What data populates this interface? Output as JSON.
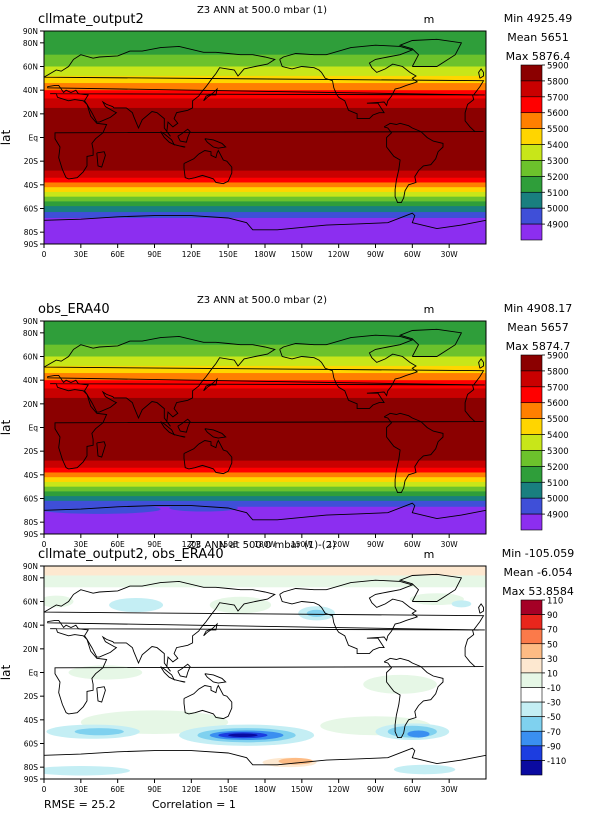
{
  "panel_ids": [
    "1",
    "2",
    "3"
  ],
  "chart_data": [
    {
      "type": "heatmap",
      "name": "cllmate_output2",
      "title": "Z3 ANN at 500.0 mbar (1)",
      "units": "m",
      "ylabel": "lat",
      "stats": {
        "min": "Min 4925.49",
        "mean": "Mean 5651",
        "max": "Max 5876.4"
      },
      "x_ticks": [
        "0",
        "30E",
        "60E",
        "90E",
        "120E",
        "150E",
        "180W",
        "150W",
        "120W",
        "90W",
        "60W",
        "30W"
      ],
      "y_ticks": [
        "90N",
        "80N",
        "60N",
        "40N",
        "20N",
        "Eq",
        "20S",
        "40S",
        "60S",
        "80S",
        "90S"
      ],
      "legend_levels": [
        "5900",
        "5800",
        "5700",
        "5600",
        "5500",
        "5400",
        "5300",
        "5200",
        "5100",
        "5000",
        "4900"
      ],
      "legend_colors": [
        "#8b0000",
        "#c90000",
        "#ff0000",
        "#ff7f00",
        "#ffd500",
        "#c8e619",
        "#6cc22c",
        "#2f9e3a",
        "#197f7f",
        "#3f4fd8",
        "#8c2ef0"
      ],
      "bands": [
        {
          "lat_top": 90,
          "lat_bottom": 70,
          "color": "#2f9e3a"
        },
        {
          "lat_top": 70,
          "lat_bottom": 60,
          "color": "#6cc22c"
        },
        {
          "lat_top": 60,
          "lat_bottom": 52,
          "color": "#c8e619"
        },
        {
          "lat_top": 52,
          "lat_bottom": 46,
          "color": "#ffd500"
        },
        {
          "lat_top": 46,
          "lat_bottom": 40,
          "color": "#ff7f00"
        },
        {
          "lat_top": 40,
          "lat_bottom": 33,
          "color": "#ff0000"
        },
        {
          "lat_top": 33,
          "lat_bottom": 25,
          "color": "#c90000"
        },
        {
          "lat_top": 25,
          "lat_bottom": -28,
          "color": "#8b0000"
        },
        {
          "lat_top": -28,
          "lat_bottom": -34,
          "color": "#c90000"
        },
        {
          "lat_top": -34,
          "lat_bottom": -38,
          "color": "#ff0000"
        },
        {
          "lat_top": -38,
          "lat_bottom": -42,
          "color": "#ff7f00"
        },
        {
          "lat_top": -42,
          "lat_bottom": -46,
          "color": "#ffd500"
        },
        {
          "lat_top": -46,
          "lat_bottom": -50,
          "color": "#c8e619"
        },
        {
          "lat_top": -50,
          "lat_bottom": -54,
          "color": "#6cc22c"
        },
        {
          "lat_top": -54,
          "lat_bottom": -58,
          "color": "#2f9e3a"
        },
        {
          "lat_top": -58,
          "lat_bottom": -63,
          "color": "#197f7f"
        },
        {
          "lat_top": -63,
          "lat_bottom": -68,
          "color": "#3f4fd8"
        },
        {
          "lat_top": -68,
          "lat_bottom": -90,
          "color": "#8c2ef0"
        }
      ],
      "blobs": []
    },
    {
      "type": "heatmap",
      "name": "obs_ERA40",
      "title": "Z3 ANN at 500.0 mbar (2)",
      "units": "m",
      "ylabel": "lat",
      "stats": {
        "min": "Min 4908.17",
        "mean": "Mean 5657",
        "max": "Max 5874.7"
      },
      "x_ticks": [
        "0",
        "30E",
        "60E",
        "90E",
        "120E",
        "150E",
        "180W",
        "150W",
        "120W",
        "90W",
        "60W",
        "30W"
      ],
      "y_ticks": [
        "90N",
        "80N",
        "60N",
        "40N",
        "20N",
        "Eq",
        "20S",
        "40S",
        "60S",
        "80S",
        "90S"
      ],
      "legend_levels": [
        "5900",
        "5800",
        "5700",
        "5600",
        "5500",
        "5400",
        "5300",
        "5200",
        "5100",
        "5000",
        "4900"
      ],
      "legend_colors": [
        "#8b0000",
        "#c90000",
        "#ff0000",
        "#ff7f00",
        "#ffd500",
        "#c8e619",
        "#6cc22c",
        "#2f9e3a",
        "#197f7f",
        "#3f4fd8",
        "#8c2ef0"
      ],
      "bands": [
        {
          "lat_top": 90,
          "lat_bottom": 70,
          "color": "#2f9e3a"
        },
        {
          "lat_top": 70,
          "lat_bottom": 60,
          "color": "#6cc22c"
        },
        {
          "lat_top": 60,
          "lat_bottom": 52,
          "color": "#c8e619"
        },
        {
          "lat_top": 52,
          "lat_bottom": 46,
          "color": "#ffd500"
        },
        {
          "lat_top": 46,
          "lat_bottom": 40,
          "color": "#ff7f00"
        },
        {
          "lat_top": 40,
          "lat_bottom": 33,
          "color": "#ff0000"
        },
        {
          "lat_top": 33,
          "lat_bottom": 25,
          "color": "#c90000"
        },
        {
          "lat_top": 25,
          "lat_bottom": -28,
          "color": "#8b0000"
        },
        {
          "lat_top": -28,
          "lat_bottom": -34,
          "color": "#c90000"
        },
        {
          "lat_top": -34,
          "lat_bottom": -38,
          "color": "#ff0000"
        },
        {
          "lat_top": -38,
          "lat_bottom": -42,
          "color": "#ff7f00"
        },
        {
          "lat_top": -42,
          "lat_bottom": -46,
          "color": "#ffd500"
        },
        {
          "lat_top": -46,
          "lat_bottom": -50,
          "color": "#c8e619"
        },
        {
          "lat_top": -50,
          "lat_bottom": -54,
          "color": "#6cc22c"
        },
        {
          "lat_top": -54,
          "lat_bottom": -58,
          "color": "#2f9e3a"
        },
        {
          "lat_top": -58,
          "lat_bottom": -62,
          "color": "#197f7f"
        },
        {
          "lat_top": -62,
          "lat_bottom": -67,
          "color": "#3f4fd8"
        },
        {
          "lat_top": -67,
          "lat_bottom": -90,
          "color": "#8c2ef0"
        }
      ],
      "blobs": [
        {
          "lon": 45,
          "lat": -69,
          "dlon": 50,
          "dlat": 4,
          "color": "#3f4fd8"
        },
        {
          "lon": 130,
          "lat": -68,
          "dlon": 28,
          "dlat": 3,
          "color": "#3f4fd8"
        }
      ]
    },
    {
      "type": "heatmap",
      "name": "cllmate_output2, obs_ERA40",
      "title": "Z3 ANN at 500.0 mbar (1)-(2)",
      "units": "m",
      "ylabel": "lat",
      "stats": {
        "min": "Min -105.059",
        "mean": "Mean -6.054",
        "max": "Max 53.8584"
      },
      "x_ticks": [
        "0",
        "30E",
        "60E",
        "90E",
        "120E",
        "150E",
        "180W",
        "150W",
        "120W",
        "90W",
        "60W",
        "30W"
      ],
      "y_ticks": [
        "90N",
        "80N",
        "60N",
        "40N",
        "20N",
        "Eq",
        "20S",
        "40S",
        "60S",
        "80S",
        "90S"
      ],
      "legend_levels": [
        "110",
        "90",
        "70",
        "50",
        "30",
        "10",
        "-10",
        "-30",
        "-50",
        "-70",
        "-90",
        "-110"
      ],
      "legend_colors": [
        "#a50026",
        "#e8261c",
        "#fb7a4a",
        "#fdbb84",
        "#fde8d0",
        "#e6f7e6",
        "#ffffff",
        "#c4eef4",
        "#7fd1ef",
        "#3a8ff0",
        "#1c3de0",
        "#0a0aa0"
      ],
      "bands": [
        {
          "lat_top": 90,
          "lat_bottom": 82,
          "color": "#fde8d0"
        },
        {
          "lat_top": 82,
          "lat_bottom": 72,
          "color": "#e6f7e6"
        },
        {
          "lat_top": 72,
          "lat_bottom": -90,
          "color": "#ffffff"
        }
      ],
      "blobs": [
        {
          "lon": 10,
          "lat": 60,
          "dlon": 14,
          "dlat": 5,
          "color": "#e6f7e6"
        },
        {
          "lon": 75,
          "lat": 57,
          "dlon": 22,
          "dlat": 6,
          "color": "#c4eef4"
        },
        {
          "lon": 160,
          "lat": 57,
          "dlon": 25,
          "dlat": 7,
          "color": "#e6f7e6"
        },
        {
          "lon": 222,
          "lat": 50,
          "dlon": 15,
          "dlat": 6,
          "color": "#c4eef4"
        },
        {
          "lon": 222,
          "lat": 50,
          "dlon": 8,
          "dlat": 3,
          "color": "#7fd1ef"
        },
        {
          "lon": 320,
          "lat": 62,
          "dlon": 22,
          "dlat": 5,
          "color": "#e6f7e6"
        },
        {
          "lon": 340,
          "lat": 58,
          "dlon": 8,
          "dlat": 3,
          "color": "#c4eef4"
        },
        {
          "lon": 50,
          "lat": 0,
          "dlon": 30,
          "dlat": 6,
          "color": "#e6f7e6"
        },
        {
          "lon": 290,
          "lat": -10,
          "dlon": 30,
          "dlat": 8,
          "color": "#e6f7e6"
        },
        {
          "lon": 90,
          "lat": -42,
          "dlon": 60,
          "dlat": 10,
          "color": "#e6f7e6"
        },
        {
          "lon": 270,
          "lat": -45,
          "dlon": 45,
          "dlat": 8,
          "color": "#e6f7e6"
        },
        {
          "lon": 40,
          "lat": -50,
          "dlon": 38,
          "dlat": 6,
          "color": "#c4eef4"
        },
        {
          "lon": 45,
          "lat": -50,
          "dlon": 20,
          "dlat": 3,
          "color": "#7fd1ef"
        },
        {
          "lon": 165,
          "lat": -53,
          "dlon": 55,
          "dlat": 9,
          "color": "#c4eef4"
        },
        {
          "lon": 165,
          "lat": -53,
          "dlon": 40,
          "dlat": 6,
          "color": "#7fd1ef"
        },
        {
          "lon": 165,
          "lat": -53,
          "dlon": 30,
          "dlat": 4,
          "color": "#3a8ff0"
        },
        {
          "lon": 162,
          "lat": -53,
          "dlon": 20,
          "dlat": 2.6,
          "color": "#1c3de0"
        },
        {
          "lon": 162,
          "lat": -53,
          "dlon": 12,
          "dlat": 1.5,
          "color": "#0a0aa0"
        },
        {
          "lon": 300,
          "lat": -50,
          "dlon": 30,
          "dlat": 7,
          "color": "#c4eef4"
        },
        {
          "lon": 300,
          "lat": -50,
          "dlon": 20,
          "dlat": 5,
          "color": "#7fd1ef"
        },
        {
          "lon": 305,
          "lat": -52,
          "dlon": 9,
          "dlat": 3,
          "color": "#3a8ff0"
        },
        {
          "lon": 200,
          "lat": -76,
          "dlon": 22,
          "dlat": 4,
          "color": "#fde8d0"
        },
        {
          "lon": 205,
          "lat": -75,
          "dlon": 14,
          "dlat": 2.8,
          "color": "#fdbb84"
        },
        {
          "lon": 30,
          "lat": -83,
          "dlon": 40,
          "dlat": 4,
          "color": "#c4eef4"
        },
        {
          "lon": 310,
          "lat": -82,
          "dlon": 25,
          "dlat": 4,
          "color": "#c4eef4"
        }
      ]
    }
  ],
  "footer": {
    "rmse": "RMSE = 25.2",
    "correlation": "Correlation = 1"
  }
}
